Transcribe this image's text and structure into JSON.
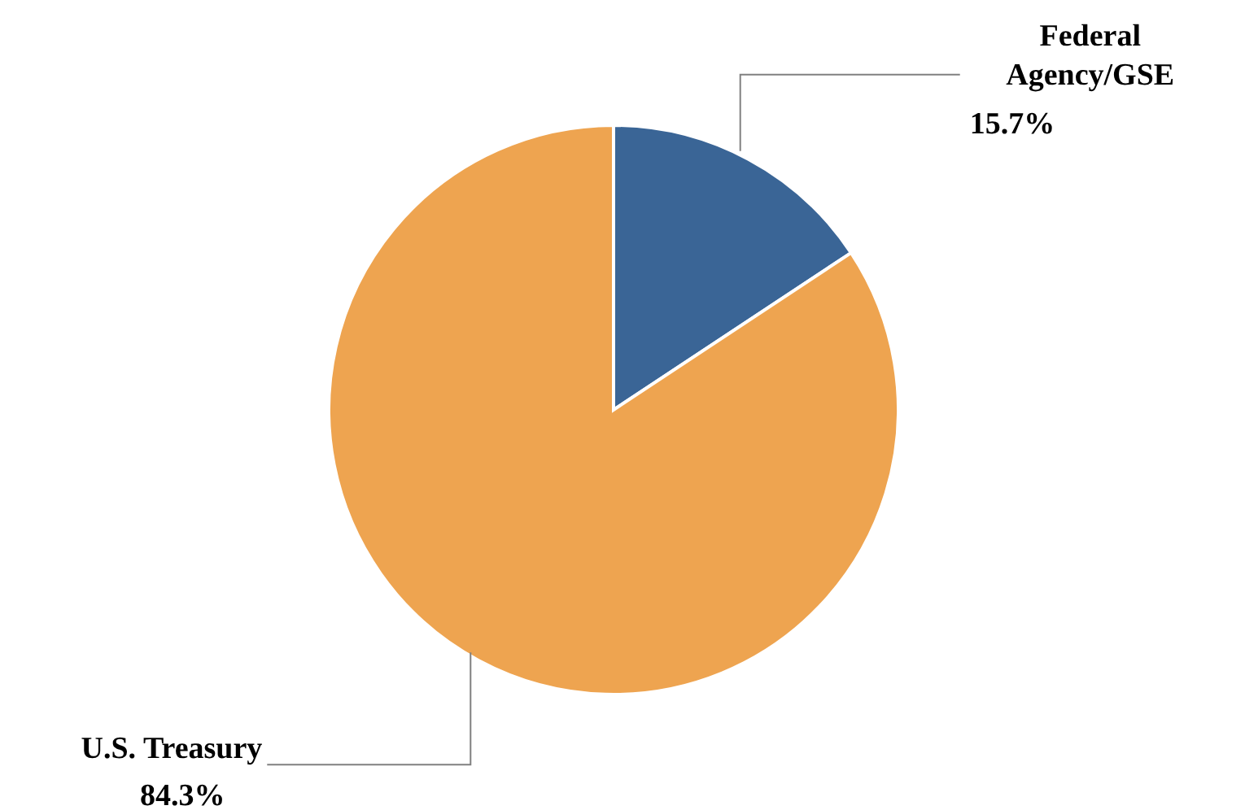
{
  "chart_data": {
    "type": "pie",
    "categories": [
      "Federal Agency/GSE",
      "U.S. Treasury"
    ],
    "values": [
      15.7,
      84.3
    ],
    "colors": [
      "#3a6596",
      "#eea450"
    ],
    "value_labels": [
      "15.7%",
      "84.3%"
    ]
  }
}
